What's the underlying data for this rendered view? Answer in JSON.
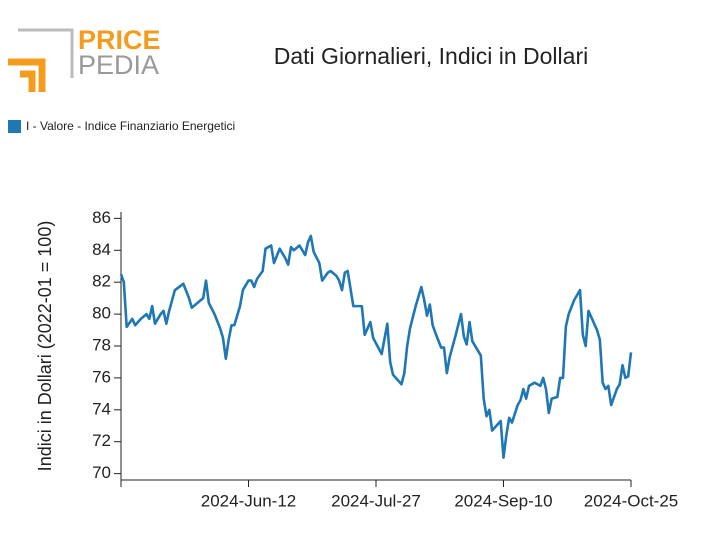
{
  "logo": {
    "top": "PRICE",
    "bottom": "PEDIA"
  },
  "chart_data": {
    "type": "line",
    "title": "Dati Giornalieri, Indici in Dollari",
    "y_label": "Indici in Dollari (2022-01 = 100)",
    "legend": "top-left",
    "grid": false,
    "xlim": [
      "2024-04-28",
      "2024-10-25"
    ],
    "xticks": [
      {
        "value": "2024-06-12",
        "label": "2024-Jun-12"
      },
      {
        "value": "2024-07-27",
        "label": "2024-Jul-27"
      },
      {
        "value": "2024-09-10",
        "label": "2024-Sep-10"
      },
      {
        "value": "2024-10-25",
        "label": "2024-Oct-25"
      }
    ],
    "ylim": [
      69.6,
      86.4
    ],
    "yticks": [
      70,
      72,
      74,
      76,
      78,
      80,
      82,
      84,
      86
    ],
    "x": [
      "2024-04-28",
      "2024-04-29",
      "2024-04-30",
      "2024-05-02",
      "2024-05-03",
      "2024-05-05",
      "2024-05-07",
      "2024-05-08",
      "2024-05-09",
      "2024-05-10",
      "2024-05-12",
      "2024-05-13",
      "2024-05-14",
      "2024-05-15",
      "2024-05-17",
      "2024-05-20",
      "2024-05-22",
      "2024-05-23",
      "2024-05-27",
      "2024-05-28",
      "2024-05-29",
      "2024-05-31",
      "2024-06-02",
      "2024-06-03",
      "2024-06-04",
      "2024-06-05",
      "2024-06-06",
      "2024-06-07",
      "2024-06-09",
      "2024-06-10",
      "2024-06-12",
      "2024-06-13",
      "2024-06-14",
      "2024-06-15",
      "2024-06-17",
      "2024-06-18",
      "2024-06-20",
      "2024-06-21",
      "2024-06-23",
      "2024-06-25",
      "2024-06-26",
      "2024-06-27",
      "2024-06-28",
      "2024-06-30",
      "2024-07-02",
      "2024-07-03",
      "2024-07-04",
      "2024-07-05",
      "2024-07-07",
      "2024-07-08",
      "2024-07-10",
      "2024-07-11",
      "2024-07-13",
      "2024-07-14",
      "2024-07-15",
      "2024-07-16",
      "2024-07-17",
      "2024-07-19",
      "2024-07-22",
      "2024-07-23",
      "2024-07-25",
      "2024-07-26",
      "2024-07-29",
      "2024-07-31",
      "2024-08-01",
      "2024-08-02",
      "2024-08-05",
      "2024-08-06",
      "2024-08-07",
      "2024-08-08",
      "2024-08-10",
      "2024-08-12",
      "2024-08-13",
      "2024-08-14",
      "2024-08-15",
      "2024-08-16",
      "2024-08-17",
      "2024-08-19",
      "2024-08-20",
      "2024-08-21",
      "2024-08-22",
      "2024-08-24",
      "2024-08-26",
      "2024-08-27",
      "2024-08-28",
      "2024-08-29",
      "2024-08-30",
      "2024-09-02",
      "2024-09-03",
      "2024-09-04",
      "2024-09-05",
      "2024-09-06",
      "2024-09-09",
      "2024-09-10",
      "2024-09-11",
      "2024-09-12",
      "2024-09-13",
      "2024-09-15",
      "2024-09-16",
      "2024-09-17",
      "2024-09-18",
      "2024-09-19",
      "2024-09-21",
      "2024-09-23",
      "2024-09-24",
      "2024-09-25",
      "2024-09-26",
      "2024-09-27",
      "2024-09-29",
      "2024-09-30",
      "2024-10-01",
      "2024-10-02",
      "2024-10-03",
      "2024-10-05",
      "2024-10-07",
      "2024-10-08",
      "2024-10-09",
      "2024-10-10",
      "2024-10-13",
      "2024-10-14",
      "2024-10-15",
      "2024-10-16",
      "2024-10-17",
      "2024-10-18",
      "2024-10-20",
      "2024-10-21",
      "2024-10-22",
      "2024-10-23",
      "2024-10-24",
      "2024-10-25"
    ],
    "series": [
      {
        "name": "I - Valore - Indice Finanziario Energetici",
        "color": "#1f77b4",
        "values": [
          82.5,
          82.0,
          79.2,
          79.7,
          79.3,
          79.7,
          80.0,
          79.7,
          80.5,
          79.4,
          80.0,
          80.2,
          79.4,
          80.2,
          81.5,
          81.9,
          81.0,
          80.4,
          81.0,
          82.1,
          80.7,
          80.0,
          79.1,
          78.5,
          77.2,
          78.4,
          79.3,
          79.3,
          80.5,
          81.5,
          82.1,
          82.1,
          81.7,
          82.2,
          82.7,
          84.1,
          84.3,
          83.2,
          84.1,
          83.5,
          83.1,
          84.2,
          84.0,
          84.3,
          83.7,
          84.5,
          84.9,
          83.9,
          83.2,
          82.1,
          82.6,
          82.7,
          82.4,
          82.1,
          81.5,
          82.6,
          82.7,
          80.5,
          80.5,
          78.7,
          79.5,
          78.5,
          77.5,
          79.4,
          77.0,
          76.2,
          75.6,
          76.3,
          78.0,
          79.1,
          80.5,
          81.7,
          80.9,
          79.9,
          80.6,
          79.3,
          78.8,
          77.9,
          77.9,
          76.3,
          77.3,
          78.6,
          80.0,
          78.6,
          78.1,
          79.5,
          78.3,
          77.4,
          74.7,
          73.6,
          74.0,
          72.7,
          73.3,
          71.0,
          72.4,
          73.5,
          73.2,
          74.3,
          74.6,
          75.3,
          74.7,
          75.5,
          75.7,
          75.5,
          76.0,
          75.3,
          73.8,
          74.7,
          74.8,
          76.0,
          76.0,
          79.2,
          80.0,
          80.9,
          81.5,
          78.7,
          78.0,
          80.2,
          79.0,
          78.4,
          75.7,
          75.3,
          75.5,
          74.3,
          75.3,
          75.6,
          76.8,
          76.0,
          76.1,
          77.6
        ]
      }
    ]
  }
}
